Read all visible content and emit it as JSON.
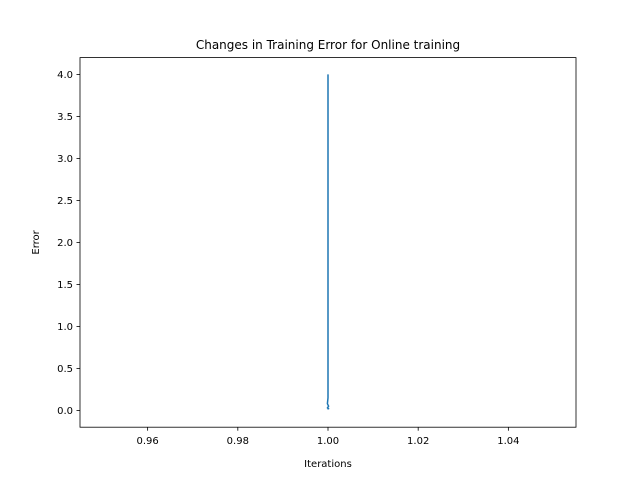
{
  "chart_data": {
    "type": "line",
    "title": "Changes in Training Error for Online training",
    "xlabel": "Iterations",
    "ylabel": "Error",
    "xlim": [
      0.945,
      1.055
    ],
    "ylim": [
      -0.2,
      4.2
    ],
    "xticks": [
      "0.96",
      "0.98",
      "1.00",
      "1.02",
      "1.04"
    ],
    "xtick_values": [
      0.96,
      0.98,
      1.0,
      1.02,
      1.04
    ],
    "yticks": [
      "0.0",
      "0.5",
      "1.0",
      "1.5",
      "2.0",
      "2.5",
      "3.0",
      "3.5",
      "4.0"
    ],
    "ytick_values": [
      0.0,
      0.5,
      1.0,
      1.5,
      2.0,
      2.5,
      3.0,
      3.5,
      4.0
    ],
    "grid": false,
    "series": [
      {
        "color": "#1f77b4",
        "x": [
          1.0,
          1.0,
          1.0,
          1.0,
          1.0,
          1.0,
          1.0,
          1.0,
          1.0,
          1.0,
          1.0
        ],
        "y": [
          4.0,
          2.5,
          1.2,
          0.6,
          0.3,
          0.15,
          0.08,
          0.05,
          0.03,
          0.02,
          0.02
        ]
      }
    ]
  }
}
